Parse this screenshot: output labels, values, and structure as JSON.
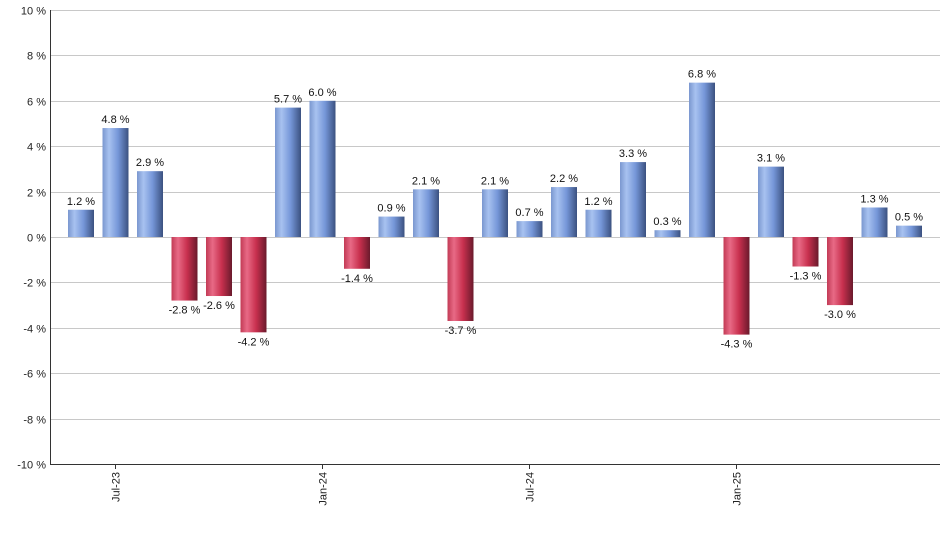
{
  "chart_data": {
    "type": "bar",
    "categories": [
      "Jun-23",
      "Jul-23",
      "Aug-23",
      "Sep-23",
      "Oct-23",
      "Nov-23",
      "Dec-23",
      "Jan-24",
      "Feb-24",
      "Mar-24",
      "Apr-24",
      "May-24",
      "Jun-24",
      "Jul-24",
      "Aug-24",
      "Sep-24",
      "Oct-24",
      "Nov-24",
      "Dec-24",
      "Jan-25",
      "Feb-25",
      "Mar-25",
      "Apr-25",
      "May-25",
      "Jun-25"
    ],
    "values": [
      1.2,
      4.8,
      2.9,
      -2.8,
      -2.6,
      -4.2,
      5.7,
      6.0,
      -1.4,
      0.9,
      2.1,
      -3.7,
      2.1,
      0.7,
      2.2,
      1.2,
      3.3,
      0.3,
      6.8,
      -4.3,
      3.1,
      -1.3,
      -3.0,
      1.3,
      0.5
    ],
    "data_labels": [
      "1.2 %",
      "4.8 %",
      "2.9 %",
      "-2.8 %",
      "-2.6 %",
      "-4.2 %",
      "5.7 %",
      "6.0 %",
      "-1.4 %",
      "0.9 %",
      "2.1 %",
      "-3.7 %",
      "2.1 %",
      "0.7 %",
      "2.2 %",
      "1.2 %",
      "3.3 %",
      "0.3 %",
      "6.8 %",
      "-4.3 %",
      "3.1 %",
      "-1.3 %",
      "-3.0 %",
      "1.3 %",
      "0.5 %"
    ],
    "y_ticks": [
      10,
      8,
      6,
      4,
      2,
      0,
      -2,
      -4,
      -6,
      -8,
      -10
    ],
    "y_tick_labels": [
      "10 %",
      "8 %",
      "6 %",
      "4 %",
      "2 %",
      "0 %",
      "-2 %",
      "-4 %",
      "-6 %",
      "-8 %",
      "-10 %"
    ],
    "x_tick_labels": [
      {
        "category": "Jul-23",
        "label": "Jul-23"
      },
      {
        "category": "Jan-24",
        "label": "Jan-24"
      },
      {
        "category": "Jul-24",
        "label": "Jul-24"
      },
      {
        "category": "Jan-25",
        "label": "Jan-25"
      }
    ],
    "ylim": [
      -10,
      10
    ],
    "grid": true,
    "title": "",
    "xlabel": "",
    "ylabel": "",
    "colors": {
      "positive_light": "#a8c2f0",
      "positive_mid": "#7596d8",
      "positive_dark": "#3b5180",
      "negative_light": "#e86a86",
      "negative_mid": "#c8304e",
      "negative_dark": "#6a1a2c"
    }
  }
}
